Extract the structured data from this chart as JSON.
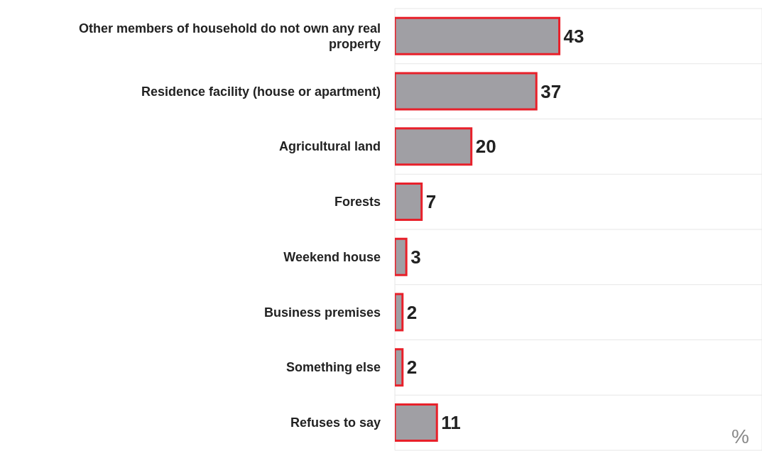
{
  "chart_data": {
    "type": "bar",
    "orientation": "horizontal",
    "categories": [
      "Other members of household do not own any real property",
      "Residence facility (house or apartment)",
      "Agricultural land",
      "Forests",
      "Weekend house",
      "Business premises",
      "Something else",
      "Refuses to say"
    ],
    "values": [
      43,
      37,
      20,
      7,
      3,
      2,
      2,
      11
    ],
    "color": "#a09fa4",
    "xlim": [
      0,
      96
    ],
    "tick_labels": "y",
    "grid": true,
    "data_labels": true,
    "annotations": [
      "%"
    ]
  }
}
